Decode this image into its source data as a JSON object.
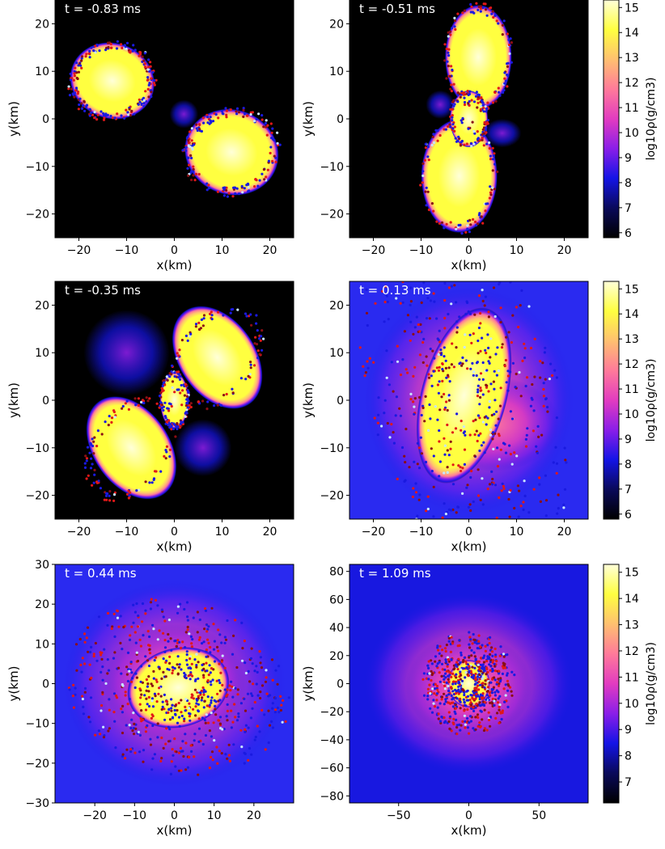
{
  "colormap": {
    "stops": [
      "#000000",
      "#0a0a5a",
      "#1414e6",
      "#8a1ee8",
      "#e23cc0",
      "#ff7a9a",
      "#ffc070",
      "#ffff40",
      "#ffffd8"
    ],
    "particle_colors": [
      "#e01818",
      "#8a0e14",
      "#1a1ae0",
      "#c8e6ff"
    ]
  },
  "chart_data": [
    {
      "type": "heatmap",
      "title": "t = -0.83 ms",
      "xlabel": "x(km)",
      "ylabel": "y(km)",
      "xlim": [
        -25,
        25
      ],
      "ylim": [
        -25,
        25
      ],
      "xticks": [
        -20,
        -10,
        0,
        10,
        20
      ],
      "yticks": [
        -20,
        -10,
        0,
        10,
        20
      ],
      "colorbar": {
        "label": "log10ρ(g/cm3)",
        "range": [
          5.8,
          15.3
        ],
        "ticks": [
          6,
          7,
          8,
          9,
          10,
          11,
          12,
          13,
          14,
          15
        ]
      },
      "density_blobs": [
        {
          "x": -13,
          "y": 8,
          "rx": 9,
          "ry": 8,
          "angle": -20
        },
        {
          "x": 12,
          "y": -7,
          "rx": 10,
          "ry": 9,
          "angle": -20
        }
      ],
      "halo_blobs": [
        {
          "x": 2,
          "y": 1,
          "rx": 3,
          "ry": 3
        }
      ],
      "particle_count": 360
    },
    {
      "type": "heatmap",
      "title": "t = -0.51 ms",
      "xlabel": "x(km)",
      "ylabel": "y(km)",
      "xlim": [
        -25,
        25
      ],
      "ylim": [
        -25,
        25
      ],
      "xticks": [
        -20,
        -10,
        0,
        10,
        20
      ],
      "yticks": [
        -20,
        -10,
        0,
        10,
        20
      ],
      "density_blobs": [
        {
          "x": 2,
          "y": 13,
          "rx": 7,
          "ry": 11,
          "angle": 0
        },
        {
          "x": -2,
          "y": -12,
          "rx": 8,
          "ry": 12,
          "angle": 0
        },
        {
          "x": 0,
          "y": 0,
          "rx": 4,
          "ry": 6,
          "angle": 0
        }
      ],
      "halo_blobs": [
        {
          "x": 7,
          "y": -3,
          "rx": 4,
          "ry": 3
        },
        {
          "x": -6,
          "y": 3,
          "rx": 3,
          "ry": 3
        }
      ],
      "particle_count": 320
    },
    {
      "type": "heatmap",
      "title": "t = -0.35 ms",
      "xlabel": "x(km)",
      "ylabel": "y(km)",
      "xlim": [
        -25,
        25
      ],
      "ylim": [
        -25,
        25
      ],
      "xticks": [
        -20,
        -10,
        0,
        10,
        20
      ],
      "yticks": [
        -20,
        -10,
        0,
        10,
        20
      ],
      "colorbar": {
        "label": "log10ρ(g/cm3)",
        "range": [
          5.8,
          15.3
        ],
        "ticks": [
          6,
          7,
          8,
          9,
          10,
          11,
          12,
          13,
          14,
          15
        ]
      },
      "density_blobs": [
        {
          "x": 9,
          "y": 9,
          "rx": 8,
          "ry": 12,
          "angle": 35
        },
        {
          "x": -9,
          "y": -10,
          "rx": 8,
          "ry": 12,
          "angle": 35
        },
        {
          "x": 0,
          "y": 0,
          "rx": 3,
          "ry": 6,
          "angle": 0
        }
      ],
      "halo_blobs": [
        {
          "x": -10,
          "y": 10,
          "rx": 9,
          "ry": 9
        },
        {
          "x": 6,
          "y": -10,
          "rx": 6,
          "ry": 6
        }
      ],
      "particle_count": 320
    },
    {
      "type": "heatmap",
      "title": "t = 0.13 ms",
      "xlabel": "x(km)",
      "ylabel": "y(km)",
      "xlim": [
        -25,
        25
      ],
      "ylim": [
        -25,
        25
      ],
      "xticks": [
        -20,
        -10,
        0,
        10,
        20
      ],
      "yticks": [
        -20,
        -10,
        0,
        10,
        20
      ],
      "background": "#2a2af0",
      "density_blobs": [
        {
          "x": -1,
          "y": 1,
          "rx": 9,
          "ry": 19,
          "angle": -15
        }
      ],
      "halo_blobs": [
        {
          "x": 0,
          "y": 0,
          "rx": 22,
          "ry": 24
        },
        {
          "x": 5,
          "y": -5,
          "rx": 14,
          "ry": 10
        }
      ],
      "particle_count": 650
    },
    {
      "type": "heatmap",
      "title": "t = 0.44 ms",
      "xlabel": "x(km)",
      "ylabel": "y(km)",
      "xlim": [
        -30,
        30
      ],
      "ylim": [
        -30,
        30
      ],
      "xticks": [
        -20,
        -10,
        0,
        10,
        20
      ],
      "yticks": [
        -30,
        -20,
        -10,
        0,
        10,
        20,
        30
      ],
      "background": "#2a2af0",
      "density_blobs": [
        {
          "x": 1,
          "y": -1,
          "rx": 13,
          "ry": 10,
          "angle": 15
        }
      ],
      "halo_blobs": [
        {
          "x": 0,
          "y": 0,
          "rx": 28,
          "ry": 26
        },
        {
          "x": 0,
          "y": 0,
          "rx": 18,
          "ry": 15
        }
      ],
      "particle_count": 700
    },
    {
      "type": "heatmap",
      "title": "t = 1.09 ms",
      "xlabel": "x(km)",
      "ylabel": "y(km)",
      "xlim": [
        -85,
        85
      ],
      "ylim": [
        -85,
        85
      ],
      "xticks": [
        -50,
        0,
        50
      ],
      "yticks": [
        -80,
        -60,
        -40,
        -20,
        0,
        20,
        40,
        60,
        80
      ],
      "colorbar": {
        "label": "log10ρ(g/cm3)",
        "range": [
          6.2,
          15.3
        ],
        "ticks": [
          7,
          8,
          9,
          10,
          11,
          12,
          13,
          14,
          15
        ]
      },
      "background": "#1818e0",
      "density_blobs": [
        {
          "x": 0,
          "y": 0,
          "rx": 15,
          "ry": 17,
          "angle": 0
        }
      ],
      "halo_blobs": [
        {
          "x": 0,
          "y": 0,
          "rx": 75,
          "ry": 65
        },
        {
          "x": 0,
          "y": -2,
          "rx": 45,
          "ry": 38
        }
      ],
      "particle_count": 650
    }
  ]
}
